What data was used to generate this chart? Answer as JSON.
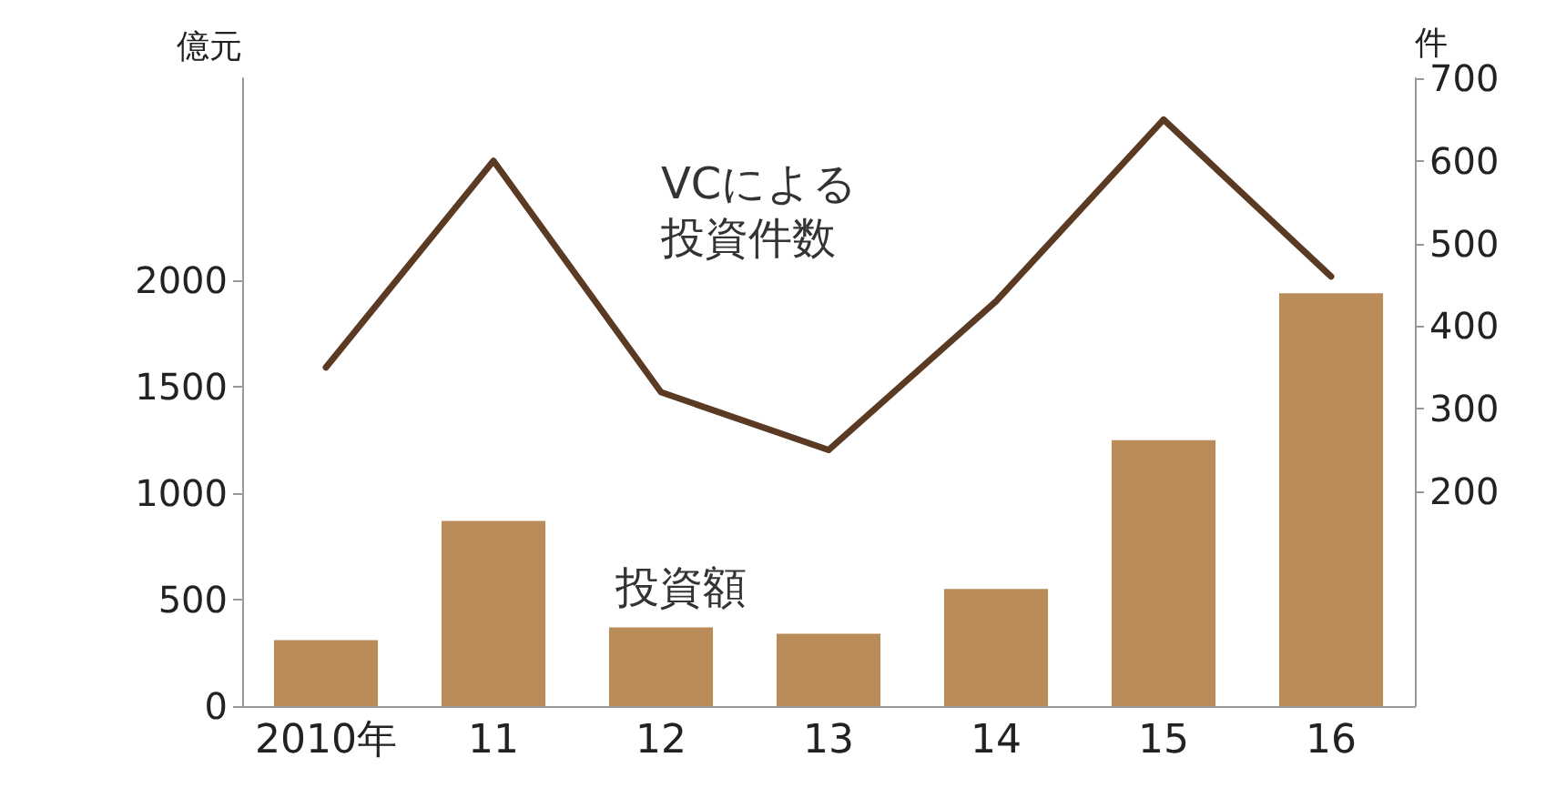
{
  "chart_data": {
    "type": "bar",
    "categories": [
      "2010年",
      "11",
      "12",
      "13",
      "14",
      "15",
      "16"
    ],
    "series": [
      {
        "name": "投資額",
        "color": "#b98c5a",
        "values": [
          310,
          870,
          370,
          340,
          550,
          1250,
          1940
        ]
      },
      {
        "name": "VCによる投資件数",
        "type": "line",
        "axis": "y2",
        "color": "#5a3a22",
        "values": [
          350,
          600,
          320,
          250,
          430,
          650,
          460
        ]
      }
    ],
    "ylabel": "億元",
    "y2label": "件",
    "ylim": [
      0,
      2950
    ],
    "yticks": [
      0,
      500,
      1000,
      1500,
      2000
    ],
    "y2lim": [
      -60,
      700
    ],
    "y2ticks": [
      200,
      300,
      400,
      500,
      600,
      700
    ],
    "grid": false,
    "legend": false,
    "marker": "none",
    "line_style": "solid"
  }
}
